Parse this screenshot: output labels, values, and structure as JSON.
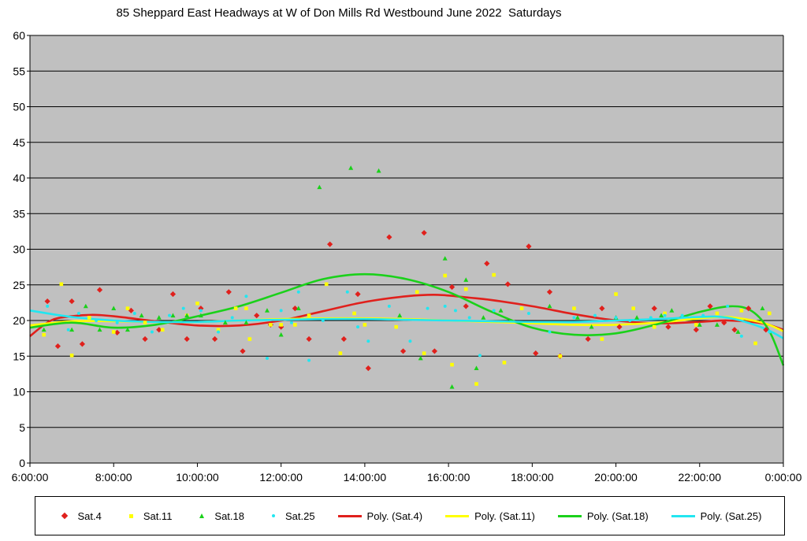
{
  "chart_data": {
    "type": "scatter",
    "title": "85 Sheppard East Headways at W of Don Mills Rd Westbound June 2022  Saturdays",
    "xlabel": "",
    "ylabel": "",
    "ylim": [
      0,
      60
    ],
    "xlim": [
      "6:00:00",
      "0:00:00"
    ],
    "yticks": [
      "0",
      "5",
      "10",
      "15",
      "20",
      "25",
      "30",
      "35",
      "40",
      "45",
      "50",
      "55",
      "60"
    ],
    "xticks": [
      "6:00:00",
      "8:00:00",
      "10:00:00",
      "12:00:00",
      "14:00:00",
      "16:00:00",
      "18:00:00",
      "20:00:00",
      "22:00:00",
      "0:00:00"
    ],
    "grid": true,
    "legend_position": "bottom",
    "colors": {
      "plot_background": "#c0c0c0",
      "sat4": "#e0201c",
      "sat11": "#ffff00",
      "sat18": "#1ad11a",
      "sat25": "#22e6f0"
    },
    "series": [
      {
        "name": "Sat.4",
        "marker": "diamond",
        "color": "#e0201c",
        "points": [
          [
            "6:25",
            22.7
          ],
          [
            "6:40",
            16.4
          ],
          [
            "7:00",
            22.7
          ],
          [
            "7:15",
            16.7
          ],
          [
            "7:40",
            24.3
          ],
          [
            "8:05",
            18.3
          ],
          [
            "8:25",
            21.4
          ],
          [
            "8:45",
            17.4
          ],
          [
            "9:05",
            18.7
          ],
          [
            "9:25",
            23.7
          ],
          [
            "9:45",
            17.4
          ],
          [
            "10:05",
            21.7
          ],
          [
            "10:25",
            17.4
          ],
          [
            "10:45",
            24.0
          ],
          [
            "11:05",
            15.7
          ],
          [
            "11:25",
            20.7
          ],
          [
            "11:45",
            19.4
          ],
          [
            "12:00",
            19.1
          ],
          [
            "12:20",
            21.7
          ],
          [
            "12:40",
            17.4
          ],
          [
            "13:10",
            30.7
          ],
          [
            "13:30",
            17.4
          ],
          [
            "13:50",
            23.7
          ],
          [
            "14:05",
            13.3
          ],
          [
            "14:35",
            31.7
          ],
          [
            "14:55",
            15.7
          ],
          [
            "15:25",
            32.3
          ],
          [
            "15:40",
            15.7
          ],
          [
            "16:05",
            24.7
          ],
          [
            "16:25",
            22.0
          ],
          [
            "16:55",
            28.0
          ],
          [
            "17:25",
            25.1
          ],
          [
            "17:55",
            30.4
          ],
          [
            "18:05",
            15.4
          ],
          [
            "18:25",
            24.0
          ],
          [
            "18:40",
            15.0
          ],
          [
            "19:20",
            17.4
          ],
          [
            "19:40",
            21.7
          ],
          [
            "20:05",
            19.1
          ],
          [
            "20:55",
            21.7
          ],
          [
            "21:15",
            19.1
          ],
          [
            "21:55",
            18.7
          ],
          [
            "22:15",
            22.0
          ],
          [
            "22:35",
            19.7
          ],
          [
            "22:50",
            18.7
          ],
          [
            "23:10",
            21.7
          ],
          [
            "23:35",
            18.7
          ]
        ]
      },
      {
        "name": "Sat.11",
        "marker": "square",
        "color": "#ffff00",
        "points": [
          [
            "6:20",
            18.0
          ],
          [
            "6:45",
            25.1
          ],
          [
            "7:00",
            15.1
          ],
          [
            "7:25",
            20.4
          ],
          [
            "8:00",
            18.4
          ],
          [
            "8:20",
            21.7
          ],
          [
            "8:45",
            19.7
          ],
          [
            "9:10",
            18.7
          ],
          [
            "9:45",
            20.7
          ],
          [
            "10:00",
            22.4
          ],
          [
            "10:30",
            18.7
          ],
          [
            "10:55",
            21.7
          ],
          [
            "11:10",
            21.7
          ],
          [
            "11:15",
            17.4
          ],
          [
            "11:45",
            19.4
          ],
          [
            "12:00",
            19.4
          ],
          [
            "12:20",
            19.4
          ],
          [
            "12:40",
            20.7
          ],
          [
            "13:05",
            25.1
          ],
          [
            "13:25",
            15.4
          ],
          [
            "13:45",
            21.0
          ],
          [
            "14:00",
            19.4
          ],
          [
            "14:45",
            19.1
          ],
          [
            "15:15",
            24.0
          ],
          [
            "15:25",
            15.4
          ],
          [
            "15:55",
            26.3
          ],
          [
            "16:05",
            13.8
          ],
          [
            "16:25",
            24.4
          ],
          [
            "16:40",
            11.1
          ],
          [
            "17:05",
            26.4
          ],
          [
            "17:20",
            14.1
          ],
          [
            "17:45",
            21.7
          ],
          [
            "18:40",
            15.0
          ],
          [
            "19:00",
            21.7
          ],
          [
            "19:40",
            17.4
          ],
          [
            "20:00",
            23.7
          ],
          [
            "20:25",
            21.7
          ],
          [
            "20:55",
            19.1
          ],
          [
            "21:10",
            21.0
          ],
          [
            "21:55",
            19.4
          ],
          [
            "22:25",
            21.0
          ],
          [
            "23:00",
            21.4
          ],
          [
            "23:20",
            16.8
          ],
          [
            "23:40",
            21.0
          ]
        ]
      },
      {
        "name": "Sat.18",
        "marker": "triangle",
        "color": "#1ad11a",
        "points": [
          [
            "6:20",
            18.7
          ],
          [
            "7:00",
            18.7
          ],
          [
            "7:20",
            22.0
          ],
          [
            "7:40",
            18.7
          ],
          [
            "8:00",
            21.7
          ],
          [
            "8:20",
            18.7
          ],
          [
            "8:40",
            20.7
          ],
          [
            "9:05",
            20.4
          ],
          [
            "9:25",
            20.7
          ],
          [
            "9:45",
            20.7
          ],
          [
            "10:05",
            20.7
          ],
          [
            "10:40",
            19.7
          ],
          [
            "11:10",
            19.7
          ],
          [
            "11:40",
            21.4
          ],
          [
            "12:00",
            18.0
          ],
          [
            "12:25",
            21.7
          ],
          [
            "12:55",
            38.7
          ],
          [
            "13:40",
            41.4
          ],
          [
            "14:20",
            41.0
          ],
          [
            "14:50",
            20.7
          ],
          [
            "15:20",
            14.7
          ],
          [
            "15:55",
            28.7
          ],
          [
            "16:05",
            10.7
          ],
          [
            "16:25",
            25.7
          ],
          [
            "16:40",
            13.3
          ],
          [
            "16:50",
            20.4
          ],
          [
            "17:15",
            21.4
          ],
          [
            "18:25",
            22.0
          ],
          [
            "19:05",
            20.4
          ],
          [
            "19:25",
            19.1
          ],
          [
            "20:00",
            20.4
          ],
          [
            "20:30",
            20.4
          ],
          [
            "21:05",
            20.7
          ],
          [
            "21:20",
            21.4
          ],
          [
            "22:00",
            19.4
          ],
          [
            "22:25",
            19.4
          ],
          [
            "22:55",
            18.4
          ],
          [
            "23:30",
            21.7
          ]
        ]
      },
      {
        "name": "Sat.25",
        "marker": "dot",
        "color": "#22e6f0",
        "points": [
          [
            "6:25",
            22.0
          ],
          [
            "6:55",
            18.7
          ],
          [
            "7:10",
            21.0
          ],
          [
            "7:35",
            20.0
          ],
          [
            "8:05",
            19.7
          ],
          [
            "8:30",
            21.0
          ],
          [
            "8:55",
            18.4
          ],
          [
            "9:20",
            20.7
          ],
          [
            "9:40",
            21.7
          ],
          [
            "10:05",
            21.4
          ],
          [
            "10:30",
            18.4
          ],
          [
            "10:50",
            20.4
          ],
          [
            "11:10",
            23.4
          ],
          [
            "11:40",
            14.7
          ],
          [
            "12:00",
            21.4
          ],
          [
            "12:15",
            19.7
          ],
          [
            "12:25",
            24.0
          ],
          [
            "12:40",
            14.4
          ],
          [
            "13:00",
            20.0
          ],
          [
            "13:35",
            24.0
          ],
          [
            "13:50",
            19.1
          ],
          [
            "14:05",
            17.1
          ],
          [
            "14:35",
            22.0
          ],
          [
            "15:05",
            17.1
          ],
          [
            "15:30",
            21.7
          ],
          [
            "15:55",
            22.0
          ],
          [
            "16:10",
            21.4
          ],
          [
            "16:30",
            20.4
          ],
          [
            "16:45",
            15.1
          ],
          [
            "17:05",
            21.4
          ],
          [
            "17:55",
            21.0
          ],
          [
            "18:25",
            18.4
          ],
          [
            "19:00",
            20.4
          ],
          [
            "19:30",
            20.7
          ],
          [
            "20:00",
            20.4
          ],
          [
            "20:20",
            20.0
          ],
          [
            "20:50",
            20.4
          ],
          [
            "21:10",
            20.7
          ],
          [
            "21:35",
            20.7
          ],
          [
            "22:05",
            20.7
          ],
          [
            "22:40",
            22.0
          ],
          [
            "23:00",
            17.8
          ],
          [
            "23:40",
            18.4
          ]
        ]
      },
      {
        "name": "Poly. (Sat.4)",
        "type": "line",
        "color": "#e0201c",
        "points": [
          [
            "6:00",
            17.8
          ],
          [
            "6:30",
            20.0
          ],
          [
            "7:00",
            20.6
          ],
          [
            "7:30",
            20.8
          ],
          [
            "8:00",
            20.6
          ],
          [
            "9:00",
            19.9
          ],
          [
            "10:00",
            19.3
          ],
          [
            "11:00",
            19.3
          ],
          [
            "12:00",
            20.0
          ],
          [
            "13:00",
            21.3
          ],
          [
            "14:00",
            22.6
          ],
          [
            "15:00",
            23.4
          ],
          [
            "15:45",
            23.6
          ],
          [
            "16:30",
            23.2
          ],
          [
            "17:00",
            22.9
          ],
          [
            "18:00",
            22.0
          ],
          [
            "19:00",
            20.9
          ],
          [
            "20:00",
            20.0
          ],
          [
            "21:00",
            19.6
          ],
          [
            "22:00",
            19.8
          ],
          [
            "22:40",
            20.0
          ],
          [
            "23:30",
            19.6
          ],
          [
            "0:00",
            18.7
          ]
        ]
      },
      {
        "name": "Poly. (Sat.11)",
        "type": "line",
        "color": "#ffff00",
        "points": [
          [
            "6:00",
            19.3
          ],
          [
            "7:00",
            19.9
          ],
          [
            "8:00",
            19.9
          ],
          [
            "9:00",
            19.8
          ],
          [
            "10:00",
            19.8
          ],
          [
            "11:00",
            20.0
          ],
          [
            "12:00",
            20.2
          ],
          [
            "13:00",
            20.3
          ],
          [
            "14:00",
            20.3
          ],
          [
            "15:00",
            20.2
          ],
          [
            "16:00",
            20.0
          ],
          [
            "17:00",
            19.8
          ],
          [
            "18:00",
            19.6
          ],
          [
            "19:00",
            19.4
          ],
          [
            "20:00",
            19.4
          ],
          [
            "21:00",
            19.7
          ],
          [
            "22:00",
            20.3
          ],
          [
            "22:40",
            20.5
          ],
          [
            "23:30",
            19.7
          ],
          [
            "0:00",
            18.5
          ]
        ]
      },
      {
        "name": "Poly. (Sat.18)",
        "type": "line",
        "color": "#1ad11a",
        "points": [
          [
            "6:00",
            19.0
          ],
          [
            "7:00",
            19.7
          ],
          [
            "8:00",
            19.0
          ],
          [
            "9:00",
            19.4
          ],
          [
            "10:00",
            20.6
          ],
          [
            "11:00",
            22.0
          ],
          [
            "12:00",
            23.9
          ],
          [
            "13:00",
            25.8
          ],
          [
            "14:00",
            26.5
          ],
          [
            "15:00",
            25.8
          ],
          [
            "16:00",
            24.0
          ],
          [
            "17:00",
            21.3
          ],
          [
            "18:00",
            19.0
          ],
          [
            "19:00",
            18.0
          ],
          [
            "20:00",
            18.2
          ],
          [
            "21:00",
            19.5
          ],
          [
            "22:00",
            21.2
          ],
          [
            "22:45",
            22.0
          ],
          [
            "23:15",
            21.3
          ],
          [
            "23:40",
            18.5
          ],
          [
            "0:00",
            13.7
          ]
        ]
      },
      {
        "name": "Poly. (Sat.25)",
        "type": "line",
        "color": "#22e6f0",
        "points": [
          [
            "6:00",
            21.4
          ],
          [
            "7:00",
            20.5
          ],
          [
            "8:00",
            20.0
          ],
          [
            "9:00",
            19.8
          ],
          [
            "10:00",
            19.8
          ],
          [
            "11:00",
            20.0
          ],
          [
            "12:00",
            20.1
          ],
          [
            "13:00",
            20.2
          ],
          [
            "14:00",
            20.2
          ],
          [
            "15:00",
            20.1
          ],
          [
            "16:00",
            20.0
          ],
          [
            "17:00",
            19.9
          ],
          [
            "18:00",
            19.8
          ],
          [
            "19:00",
            19.8
          ],
          [
            "20:00",
            20.0
          ],
          [
            "21:00",
            20.2
          ],
          [
            "22:00",
            20.5
          ],
          [
            "22:40",
            20.4
          ],
          [
            "23:30",
            19.0
          ],
          [
            "0:00",
            17.5
          ]
        ]
      }
    ]
  }
}
